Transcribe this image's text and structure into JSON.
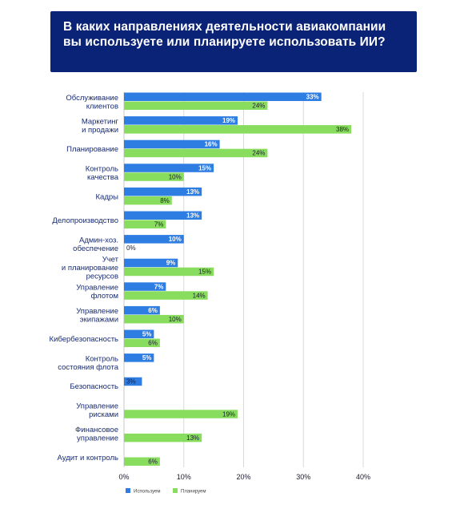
{
  "title": "В каких направлениях деятельности авиакомпании вы используете или планируете использовать ИИ?",
  "colors": {
    "title_bg": "#0b2376",
    "used": "#2e7de3",
    "planned": "#88dd5e",
    "grid": "#d9d9d9",
    "text": "#172b73"
  },
  "chart_data": {
    "type": "bar",
    "orientation": "horizontal",
    "categories": [
      [
        "Обслуживание",
        "клиентов"
      ],
      [
        "Маркетинг",
        "и продажи"
      ],
      [
        "Планирование"
      ],
      [
        "Контроль",
        "качества"
      ],
      [
        "Кадры"
      ],
      [
        "Делопроизводство"
      ],
      [
        "Админ-хоз.",
        "обеспечение"
      ],
      [
        "Учет",
        "и планирование",
        "ресурсов"
      ],
      [
        "Управление",
        "флотом"
      ],
      [
        "Управление",
        "экипажами"
      ],
      [
        "Кибербезопасность"
      ],
      [
        "Контроль",
        "состояния флота"
      ],
      [
        "Безопасность"
      ],
      [
        "Управление",
        "рисками"
      ],
      [
        "Финансовое",
        "управление"
      ],
      [
        "Аудит и контроль"
      ]
    ],
    "series": [
      {
        "name": "Используем",
        "values": [
          33,
          19,
          16,
          15,
          13,
          13,
          10,
          9,
          7,
          6,
          5,
          5,
          3,
          null,
          null,
          null
        ]
      },
      {
        "name": "Планируем",
        "values": [
          24,
          38,
          24,
          10,
          8,
          7,
          0,
          15,
          14,
          10,
          6,
          null,
          null,
          19,
          13,
          6
        ]
      }
    ],
    "xlim": [
      0,
      40
    ],
    "xticks": [
      "0%",
      "10%",
      "20%",
      "30%",
      "40%"
    ],
    "grid": true,
    "legend": "bottom-left"
  }
}
